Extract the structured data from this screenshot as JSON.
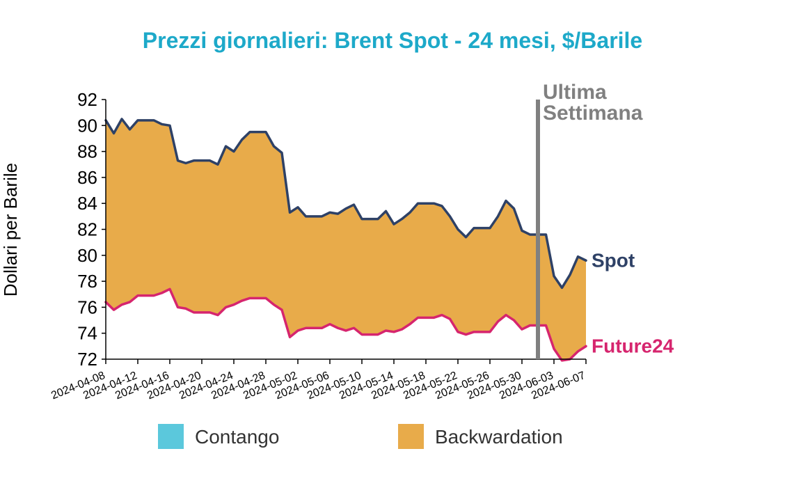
{
  "chart_data": {
    "type": "area",
    "title": "Prezzi giornalieri: Brent Spot - 24 mesi, $/Barile",
    "ylabel": "Dollari per Barile",
    "xlabel": "",
    "ylim": [
      72,
      92
    ],
    "yticks": [
      "72",
      "74",
      "76",
      "78",
      "80",
      "82",
      "84",
      "86",
      "88",
      "90",
      "92"
    ],
    "x_tick_labels": [
      "2024-04-08",
      "2024-04-12",
      "2024-04-16",
      "2024-04-20",
      "2024-04-24",
      "2024-04-28",
      "2024-05-02",
      "2024-05-06",
      "2024-05-10",
      "2024-05-14",
      "2024-05-18",
      "2024-05-22",
      "2024-05-26",
      "2024-05-30",
      "2024-06-03",
      "2024-06-07"
    ],
    "x": [
      "2024-04-08",
      "2024-04-09",
      "2024-04-10",
      "2024-04-11",
      "2024-04-12",
      "2024-04-13",
      "2024-04-14",
      "2024-04-15",
      "2024-04-16",
      "2024-04-17",
      "2024-04-18",
      "2024-04-19",
      "2024-04-20",
      "2024-04-21",
      "2024-04-22",
      "2024-04-23",
      "2024-04-24",
      "2024-04-25",
      "2024-04-26",
      "2024-04-27",
      "2024-04-28",
      "2024-04-29",
      "2024-04-30",
      "2024-05-01",
      "2024-05-02",
      "2024-05-03",
      "2024-05-04",
      "2024-05-05",
      "2024-05-06",
      "2024-05-07",
      "2024-05-08",
      "2024-05-09",
      "2024-05-10",
      "2024-05-11",
      "2024-05-12",
      "2024-05-13",
      "2024-05-14",
      "2024-05-15",
      "2024-05-16",
      "2024-05-17",
      "2024-05-18",
      "2024-05-19",
      "2024-05-20",
      "2024-05-21",
      "2024-05-22",
      "2024-05-23",
      "2024-05-24",
      "2024-05-25",
      "2024-05-26",
      "2024-05-27",
      "2024-05-28",
      "2024-05-29",
      "2024-05-30",
      "2024-05-31",
      "2024-06-01",
      "2024-06-02",
      "2024-06-03",
      "2024-06-04",
      "2024-06-05",
      "2024-06-06",
      "2024-06-07"
    ],
    "series": [
      {
        "name": "Spot",
        "color": "#2e4166",
        "values": [
          90.4,
          89.4,
          90.5,
          89.7,
          90.4,
          90.4,
          90.4,
          90.1,
          90.0,
          87.3,
          87.1,
          87.3,
          87.3,
          87.3,
          87.0,
          88.4,
          88.0,
          88.9,
          89.5,
          89.5,
          89.5,
          88.4,
          87.9,
          83.3,
          83.7,
          83.0,
          83.0,
          83.0,
          83.3,
          83.2,
          83.6,
          83.9,
          82.8,
          82.8,
          82.8,
          83.4,
          82.4,
          82.8,
          83.3,
          84.0,
          84.0,
          84.0,
          83.8,
          83.0,
          82.0,
          81.4,
          82.1,
          82.1,
          82.1,
          83.0,
          84.2,
          83.6,
          81.9,
          81.6,
          81.6,
          81.6,
          78.4,
          77.5,
          78.5,
          79.9,
          79.6
        ]
      },
      {
        "name": "Future24",
        "color": "#d6256e",
        "values": [
          76.4,
          75.8,
          76.2,
          76.4,
          76.9,
          76.9,
          76.9,
          77.1,
          77.4,
          76.0,
          75.9,
          75.6,
          75.6,
          75.6,
          75.4,
          76.0,
          76.2,
          76.5,
          76.7,
          76.7,
          76.7,
          76.2,
          75.8,
          73.7,
          74.2,
          74.4,
          74.4,
          74.4,
          74.7,
          74.4,
          74.2,
          74.4,
          73.9,
          73.9,
          73.9,
          74.2,
          74.1,
          74.3,
          74.7,
          75.2,
          75.2,
          75.2,
          75.4,
          75.1,
          74.1,
          73.9,
          74.1,
          74.1,
          74.1,
          74.9,
          75.4,
          75.0,
          74.3,
          74.6,
          74.6,
          74.6,
          72.8,
          71.9,
          72.0,
          72.6,
          73.0
        ]
      }
    ],
    "annotation": {
      "date": "2024-06-01",
      "text_line1": "Ultima",
      "text_line2": "Settimana",
      "color": "#808080"
    },
    "end_labels": [
      "Spot",
      "Future24"
    ],
    "legend": {
      "placement": "bottom",
      "items": [
        {
          "label": "Contango",
          "color": "#5bc8dc"
        },
        {
          "label": "Backwardation",
          "color": "#e8ab4a"
        }
      ]
    },
    "grid": false,
    "title_color": "#1da9c9"
  }
}
